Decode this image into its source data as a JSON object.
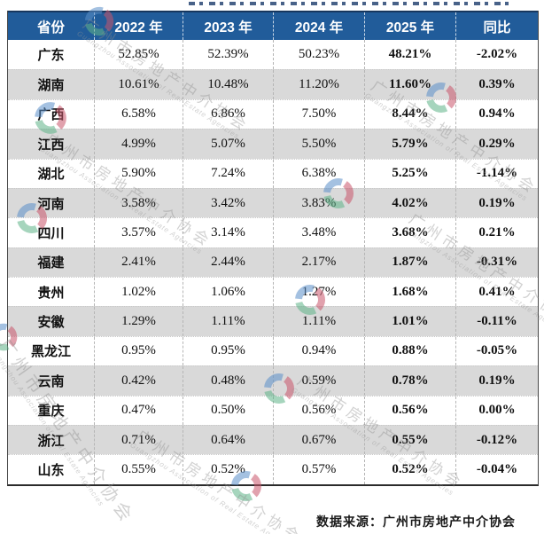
{
  "colors": {
    "header_bg": "#215C9A",
    "header_text": "#FFFFFF",
    "row_alt_bg": "#D9D9D9",
    "border_dark": "#17375E",
    "logo_blue": "#5B8FC9",
    "logo_green": "#5FB388",
    "logo_red": "#C9566B"
  },
  "footer": {
    "source_label": "数据来源：广州市房地产中介协会"
  },
  "watermark": {
    "text": "广州市房地产中介协会",
    "subtext": "Guangzhou Association of Real Estate Agencies"
  },
  "chart_data": {
    "type": "table",
    "columns": [
      "省份",
      "2022 年",
      "2023 年",
      "2024 年",
      "2025 年",
      "同比"
    ],
    "rows": [
      {
        "province": "广东",
        "values": [
          "52.85%",
          "52.39%",
          "50.23%",
          "48.21%",
          "-2.02%"
        ]
      },
      {
        "province": "湖南",
        "values": [
          "10.61%",
          "10.48%",
          "11.20%",
          "11.60%",
          "0.39%"
        ]
      },
      {
        "province": "广西",
        "values": [
          "6.58%",
          "6.86%",
          "7.50%",
          "8.44%",
          "0.94%"
        ]
      },
      {
        "province": "江西",
        "values": [
          "4.99%",
          "5.07%",
          "5.50%",
          "5.79%",
          "0.29%"
        ]
      },
      {
        "province": "湖北",
        "values": [
          "5.90%",
          "7.24%",
          "6.38%",
          "5.25%",
          "-1.14%"
        ]
      },
      {
        "province": "河南",
        "values": [
          "3.58%",
          "3.42%",
          "3.83%",
          "4.02%",
          "0.19%"
        ]
      },
      {
        "province": "四川",
        "values": [
          "3.57%",
          "3.14%",
          "3.48%",
          "3.68%",
          "0.21%"
        ]
      },
      {
        "province": "福建",
        "values": [
          "2.41%",
          "2.44%",
          "2.17%",
          "1.87%",
          "-0.31%"
        ]
      },
      {
        "province": "贵州",
        "values": [
          "1.02%",
          "1.06%",
          "1.27%",
          "1.68%",
          "0.41%"
        ]
      },
      {
        "province": "安徽",
        "values": [
          "1.29%",
          "1.11%",
          "1.11%",
          "1.01%",
          "-0.11%"
        ]
      },
      {
        "province": "黑龙江",
        "values": [
          "0.95%",
          "0.95%",
          "0.94%",
          "0.88%",
          "-0.05%"
        ]
      },
      {
        "province": "云南",
        "values": [
          "0.42%",
          "0.48%",
          "0.59%",
          "0.78%",
          "0.19%"
        ]
      },
      {
        "province": "重庆",
        "values": [
          "0.47%",
          "0.50%",
          "0.56%",
          "0.56%",
          "0.00%"
        ]
      },
      {
        "province": "浙江",
        "values": [
          "0.71%",
          "0.64%",
          "0.67%",
          "0.55%",
          "-0.12%"
        ]
      },
      {
        "province": "山东",
        "values": [
          "0.55%",
          "0.52%",
          "0.57%",
          "0.52%",
          "-0.04%"
        ]
      }
    ],
    "source": "数据来源：广州市房地产中介协会",
    "layout": {
      "grid": "alternating-row-shading",
      "legend": "none"
    }
  }
}
